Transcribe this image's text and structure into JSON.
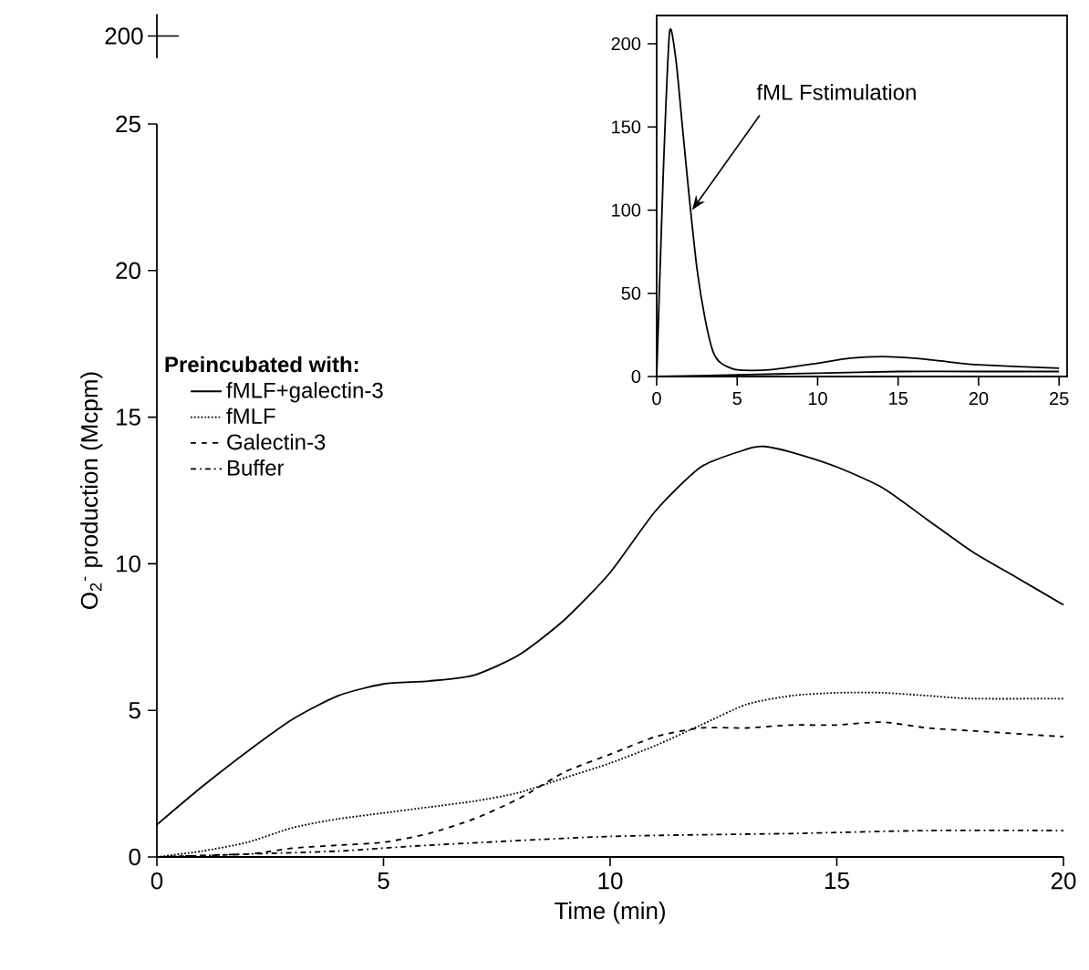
{
  "chart_data": [
    {
      "type": "line",
      "annotations": [
        "200"
      ],
      "xlabel": "Time (min)",
      "ylabel": "O$_{2}$$^{-}$ production (Mcpm)",
      "legend_title": "Preincubated with:",
      "legend": "left",
      "marker": "none",
      "xlim": [
        0,
        20
      ],
      "xticks": [
        0,
        5,
        10,
        15,
        20
      ],
      "ylim": [
        0,
        25
      ],
      "yticks": [
        0,
        5,
        10,
        15,
        20,
        25
      ],
      "series": [
        {
          "name": "fMLF+galectin-3",
          "color": "#000000",
          "line_style": "solid",
          "x": [
            0,
            1,
            2,
            3,
            4,
            5,
            6,
            7,
            8,
            9,
            10,
            11,
            12,
            13,
            13.4,
            14,
            15,
            16,
            17,
            18,
            19,
            20
          ],
          "values": [
            1.1,
            2.4,
            3.6,
            4.7,
            5.5,
            5.9,
            6.0,
            6.2,
            6.9,
            8.1,
            9.7,
            11.8,
            13.3,
            13.9,
            14.0,
            13.8,
            13.3,
            12.6,
            11.5,
            10.4,
            9.5,
            8.6
          ]
        },
        {
          "name": "fMLF",
          "color": "#000000",
          "line_style": "dotted",
          "x": [
            0,
            1,
            2,
            3,
            4,
            5,
            6,
            7,
            8,
            9,
            10,
            11,
            12,
            13,
            14,
            15,
            16,
            17,
            18,
            20
          ],
          "values": [
            0,
            0.2,
            0.5,
            1.0,
            1.3,
            1.5,
            1.7,
            1.9,
            2.2,
            2.7,
            3.2,
            3.8,
            4.5,
            5.2,
            5.5,
            5.6,
            5.6,
            5.5,
            5.4,
            5.4
          ]
        },
        {
          "name": "Galectin-3",
          "color": "#000000",
          "line_style": "dashed",
          "x": [
            0,
            2,
            3,
            4,
            5,
            6,
            7,
            8,
            9,
            10,
            11,
            12,
            13,
            14,
            15,
            16,
            17,
            18,
            20
          ],
          "values": [
            0,
            0.1,
            0.3,
            0.4,
            0.5,
            0.8,
            1.3,
            2.0,
            2.9,
            3.5,
            4.1,
            4.4,
            4.4,
            4.5,
            4.5,
            4.6,
            4.4,
            4.3,
            4.1
          ]
        },
        {
          "name": "Buffer",
          "color": "#000000",
          "line_style": "dashdot",
          "x": [
            0,
            2,
            4,
            6,
            10,
            14,
            17,
            20
          ],
          "values": [
            0,
            0.1,
            0.2,
            0.4,
            0.7,
            0.8,
            0.9,
            0.9
          ]
        }
      ]
    },
    {
      "type": "line",
      "marker": "none",
      "xlim": [
        0,
        25.5
      ],
      "xticks": [
        0,
        5,
        10,
        15,
        20,
        25
      ],
      "ylim": [
        0,
        217
      ],
      "yticks": [
        0,
        50,
        100,
        150,
        200
      ],
      "annotations": [
        {
          "text": "fML Fstimulation",
          "x": 2.2,
          "y": 100
        }
      ],
      "series": [
        {
          "color": "#000000",
          "line_style": "solid",
          "x": [
            0,
            0.4,
            0.8,
            1.2,
            1.6,
            2,
            2.5,
            3,
            3.5,
            4,
            5,
            7,
            10,
            12,
            14,
            16,
            18,
            20,
            25
          ],
          "values": [
            0,
            120,
            207,
            190,
            150,
            110,
            65,
            35,
            15,
            8,
            4,
            4,
            8,
            11,
            12,
            11,
            9,
            7,
            5
          ]
        },
        {
          "color": "#000000",
          "line_style": "solid",
          "x": [
            0,
            5,
            10,
            15,
            20,
            25
          ],
          "values": [
            0,
            1,
            2,
            3,
            3,
            3
          ]
        }
      ]
    }
  ]
}
